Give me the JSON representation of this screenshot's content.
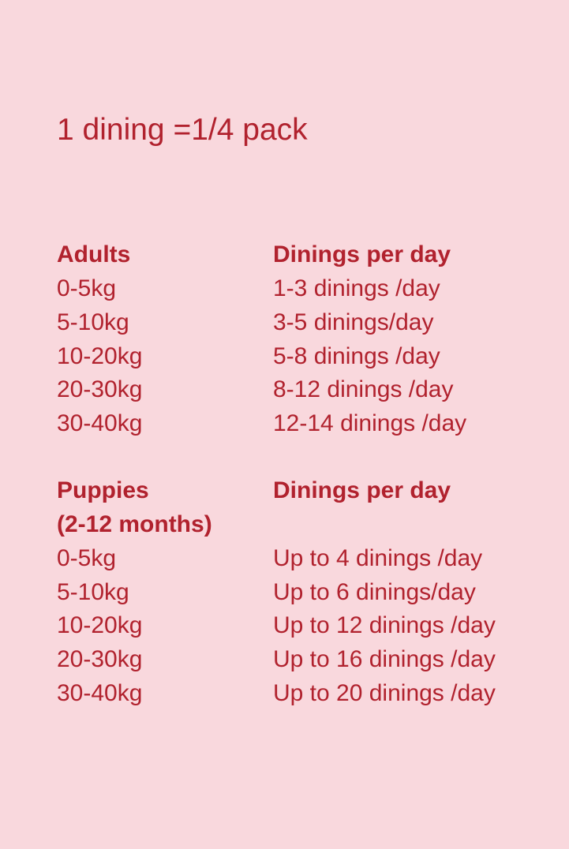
{
  "title": "1 dining =1/4 pack",
  "adults": {
    "header": [
      "Adults",
      "Dinings per day"
    ],
    "rows": [
      [
        "0-5kg",
        "1-3 dinings /day"
      ],
      [
        "5-10kg",
        "3-5 dinings/day"
      ],
      [
        "10-20kg",
        "5-8 dinings /day"
      ],
      [
        "20-30kg",
        "8-12 dinings /day"
      ],
      [
        "30-40kg",
        "12-14 dinings /day"
      ]
    ]
  },
  "puppies": {
    "header": [
      "Puppies",
      "Dinings per day"
    ],
    "subheader": "(2-12 months)",
    "rows": [
      [
        "0-5kg",
        "Up to 4 dinings /day"
      ],
      [
        "5-10kg",
        "Up to 6 dinings/day"
      ],
      [
        "10-20kg",
        "Up to 12 dinings /day"
      ],
      [
        "20-30kg",
        "Up to 16 dinings /day"
      ],
      [
        "30-40kg",
        "Up to 20 dinings /day"
      ]
    ]
  },
  "colors": {
    "background": "#f9d8dd",
    "text": "#b1222e"
  }
}
